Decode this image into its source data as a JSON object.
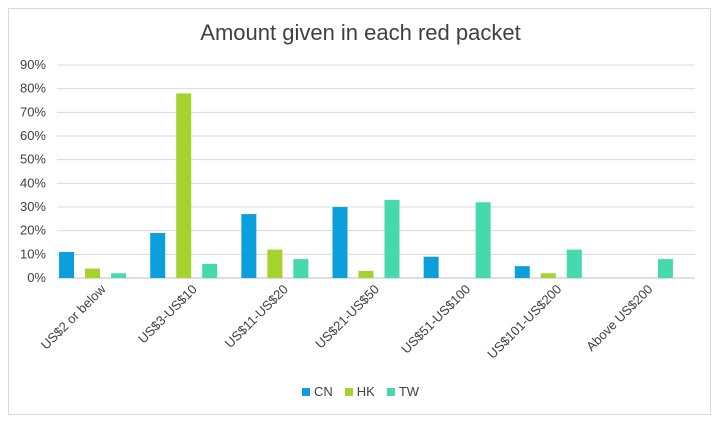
{
  "chart_data": {
    "type": "bar",
    "title": "Amount given in each red packet",
    "categories": [
      "US$2 or below",
      "US$3-US$10",
      "US$11-US$20",
      "US$21-US$50",
      "US$51-US$100",
      "US$101-US$200",
      "Above US$200"
    ],
    "series": [
      {
        "name": "CN",
        "color": "#0b9fdc",
        "values": [
          11,
          19,
          27,
          30,
          9,
          5,
          null
        ]
      },
      {
        "name": "HK",
        "color": "#a6d22e",
        "values": [
          4,
          78,
          12,
          3,
          null,
          2,
          null
        ]
      },
      {
        "name": "TW",
        "color": "#45d9ad",
        "values": [
          2,
          6,
          8,
          33,
          32,
          12,
          8
        ]
      }
    ],
    "ylim": [
      0,
      90
    ],
    "yticks": [
      "0%",
      "10%",
      "20%",
      "30%",
      "40%",
      "50%",
      "60%",
      "70%",
      "80%",
      "90%"
    ],
    "ytick_values": [
      0,
      10,
      20,
      30,
      40,
      50,
      60,
      70,
      80,
      90
    ],
    "grid": true,
    "legend_position": "bottom"
  }
}
